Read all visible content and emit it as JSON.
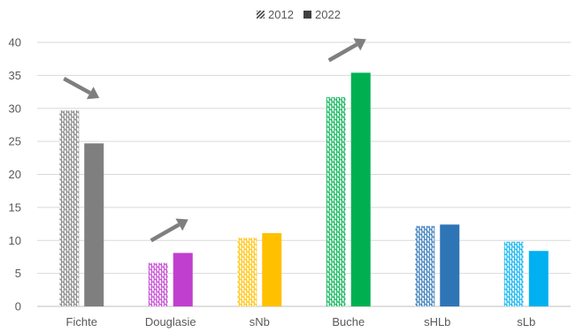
{
  "chart_data": {
    "type": "bar",
    "categories": [
      "Fichte",
      "Douglasie",
      "sNb",
      "Buche",
      "sHLb",
      "sLb"
    ],
    "series": [
      {
        "name": "2012",
        "pattern": "hatched",
        "values": [
          29.7,
          6.6,
          10.4,
          31.7,
          12.2,
          9.8
        ]
      },
      {
        "name": "2022",
        "pattern": "solid",
        "values": [
          24.7,
          8.1,
          11.1,
          35.4,
          12.4,
          8.4
        ]
      }
    ],
    "category_colors": [
      "#7f7f7f",
      "#c03fcf",
      "#ffc000",
      "#00b050",
      "#2e75b6",
      "#00b0f0"
    ],
    "legend_color": "#404040",
    "arrow_color": "#7f7f7f",
    "ylim": [
      0,
      40
    ],
    "yticks": [
      0,
      5,
      10,
      15,
      20,
      25,
      30,
      35,
      40
    ],
    "grid": true,
    "legend_position": "top-center",
    "annotations": [
      {
        "type": "trend-arrow",
        "direction": "down",
        "category": "Fichte"
      },
      {
        "type": "trend-arrow",
        "direction": "up",
        "category": "Douglasie"
      },
      {
        "type": "trend-arrow",
        "direction": "up",
        "category": "Buche"
      }
    ],
    "title": "",
    "xlabel": "",
    "ylabel": ""
  }
}
